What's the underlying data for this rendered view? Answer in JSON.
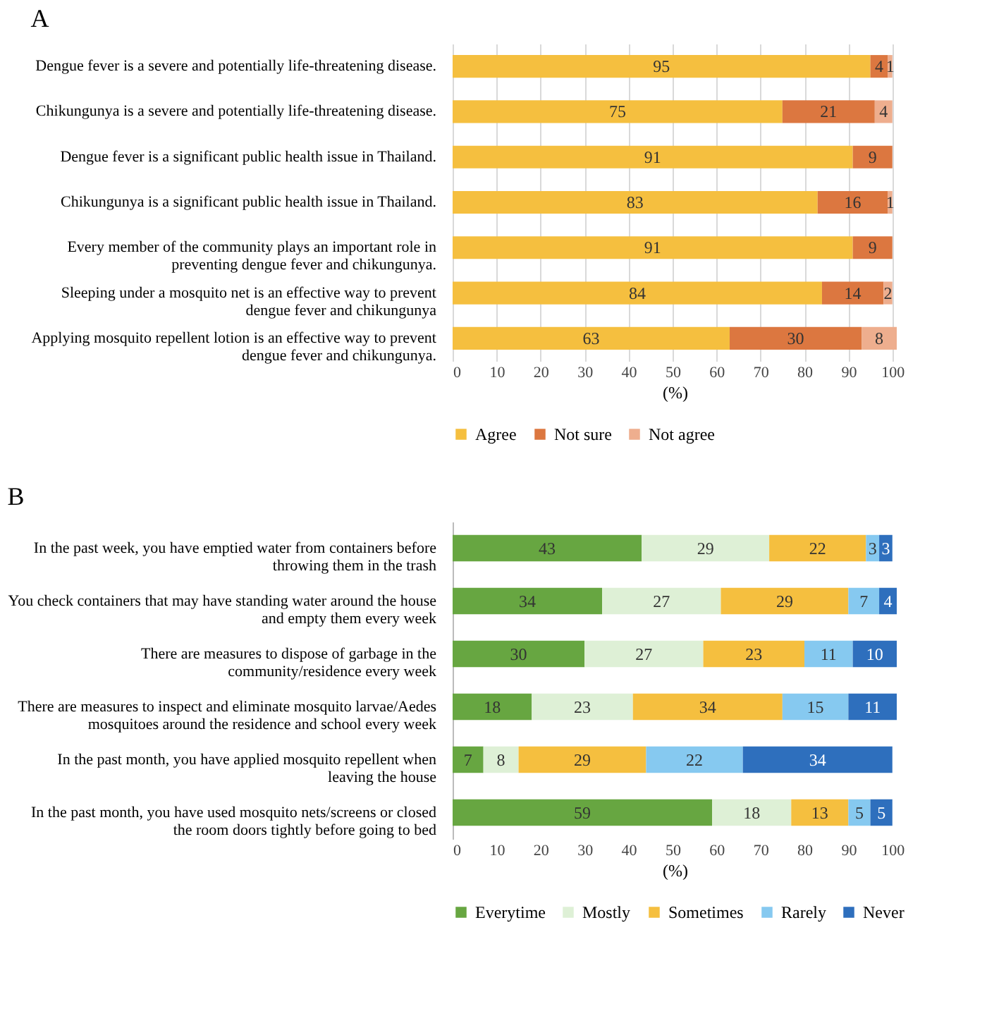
{
  "chart_data": [
    {
      "type": "bar",
      "orientation": "horizontal",
      "stacked": true,
      "title": "A",
      "xlabel": "(%)",
      "categories": [
        "Dengue fever is a severe and potentially life-threatening disease.",
        "Chikungunya is a severe and potentially life-threatening disease.",
        "Dengue fever is a significant public health issue in Thailand.",
        "Chikungunya is a significant public health issue in Thailand.",
        "Every member of the community plays an important role in preventing dengue fever and chikungunya.",
        "Sleeping under a mosquito net is an effective way to prevent dengue fever and chikungunya",
        "Applying mosquito repellent lotion is an effective way to prevent dengue fever and chikungunya."
      ],
      "series": [
        {
          "name": "Agree",
          "color": "#f5bf3f",
          "values": [
            95,
            75,
            91,
            83,
            91,
            84,
            63
          ]
        },
        {
          "name": "Not sure",
          "color": "#dc7740",
          "values": [
            4,
            21,
            9,
            16,
            9,
            14,
            30
          ]
        },
        {
          "name": "Not agree",
          "color": "#eeae8e",
          "values": [
            1,
            4,
            null,
            1,
            null,
            2,
            8
          ]
        }
      ],
      "xlim": [
        0,
        101
      ],
      "xticks": [
        0,
        10,
        20,
        30,
        40,
        50,
        60,
        70,
        80,
        90,
        100
      ],
      "grid": "x",
      "legend": "bottom",
      "data_labels": true
    },
    {
      "type": "bar",
      "orientation": "horizontal",
      "stacked": true,
      "title": "B",
      "xlabel": "(%)",
      "categories": [
        "In the past week, you have emptied water from containers before throwing them in the trash",
        "You check containers that may have standing water around the house and empty them every week",
        "There are measures to dispose of garbage in the community/residence every week",
        "There are measures to inspect and eliminate mosquito larvae/Aedes mosquitoes around the residence and school every week",
        "In the past month, you have applied mosquito repellent when leaving the house",
        "In the past month, you have used mosquito nets/screens or closed the room doors tightly before going to bed"
      ],
      "series": [
        {
          "name": "Everytime",
          "color": "#67a641",
          "values": [
            43,
            34,
            30,
            18,
            7,
            59
          ]
        },
        {
          "name": "Mostly",
          "color": "#def0d6",
          "values": [
            29,
            27,
            27,
            23,
            8,
            18
          ]
        },
        {
          "name": "Sometimes",
          "color": "#f5bf3f",
          "values": [
            22,
            29,
            23,
            34,
            29,
            13
          ]
        },
        {
          "name": "Rarely",
          "color": "#86c9f0",
          "values": [
            3,
            7,
            11,
            15,
            22,
            5
          ]
        },
        {
          "name": "Never",
          "color": "#2e6fbd",
          "values": [
            3,
            4,
            10,
            11,
            34,
            5
          ]
        }
      ],
      "xlim": [
        0,
        101
      ],
      "xticks": [
        0,
        10,
        20,
        30,
        40,
        50,
        60,
        70,
        80,
        90,
        100
      ],
      "grid": false,
      "legend": "bottom",
      "data_labels": true
    }
  ]
}
